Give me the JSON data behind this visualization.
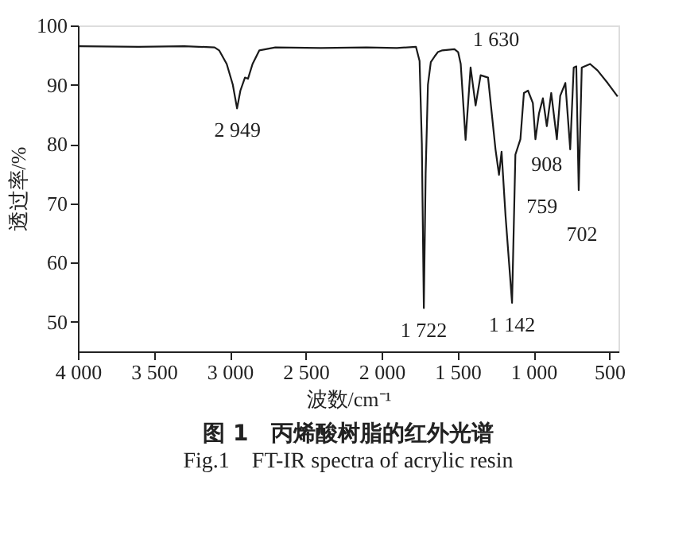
{
  "chart_data": {
    "type": "line",
    "title": "图 1　丙烯酸树脂的红外光谱",
    "subtitle": "Fig.1　FT-IR spectra of acrylic resin",
    "xlabel": "波数/cm⁻¹",
    "ylabel": "透过率/%",
    "xlim": [
      4000,
      440
    ],
    "ylim": [
      45,
      100
    ],
    "xticks": [
      {
        "value": 4000,
        "label": "4 000"
      },
      {
        "value": 3500,
        "label": "3 500"
      },
      {
        "value": 3000,
        "label": "3 000"
      },
      {
        "value": 2500,
        "label": "2 500"
      },
      {
        "value": 2000,
        "label": "2 000"
      },
      {
        "value": 1500,
        "label": "1 500"
      },
      {
        "value": 1000,
        "label": "1 000"
      },
      500
    ],
    "yticks": [
      50,
      60,
      70,
      80,
      90,
      100
    ],
    "grid": false,
    "marker": "none",
    "line_style": "solid",
    "series": [
      {
        "color": "#1a1a1a",
        "x": [
          4000,
          3600,
          3300,
          3100,
          3070,
          3020,
          2980,
          2952,
          2930,
          2900,
          2880,
          2850,
          2805,
          2700,
          2400,
          2100,
          1900,
          1774,
          1750,
          1735,
          1722,
          1710,
          1695,
          1676,
          1650,
          1630,
          1600,
          1520,
          1496,
          1479,
          1447,
          1414,
          1381,
          1348,
          1299,
          1250,
          1227,
          1210,
          1184,
          1141,
          1119,
          1086,
          1063,
          1036,
          1004,
          987,
          964,
          938,
          912,
          883,
          846,
          824,
          790,
          758,
          735,
          718,
          702,
          682,
          627,
          578,
          512,
          446
        ],
        "values": [
          96.5,
          96.4,
          96.5,
          96.3,
          95.8,
          93.5,
          90,
          86,
          89,
          91.2,
          91,
          93.5,
          95.8,
          96.3,
          96.2,
          96.3,
          96.2,
          96.4,
          94,
          80,
          52.3,
          75,
          90,
          93.8,
          94.8,
          95.5,
          95.8,
          96,
          95.5,
          93.5,
          80.7,
          92.9,
          86.5,
          91.6,
          91.2,
          79.1,
          74.8,
          78.7,
          67.9,
          53.2,
          78.2,
          80.8,
          88.6,
          89,
          86.9,
          80.8,
          85.1,
          87.7,
          83,
          88.6,
          80.8,
          88.1,
          90.3,
          79.1,
          92.9,
          93.1,
          72.2,
          92.9,
          93.5,
          92.4,
          90.3,
          88
        ]
      }
    ],
    "annotations": [
      {
        "text": "2 949",
        "x": 2949,
        "y": 86
      },
      {
        "text": "1 722",
        "x": 1722,
        "y": 52.3
      },
      {
        "text": "1 630",
        "x": 1630,
        "y": 95.5
      },
      {
        "text": "1 142",
        "x": 1141,
        "y": 53.2
      },
      {
        "text": "908",
        "x": 912,
        "y": 83
      },
      {
        "text": "759",
        "x": 758,
        "y": 79.1
      },
      {
        "text": "702",
        "x": 702,
        "y": 72.2
      }
    ]
  }
}
